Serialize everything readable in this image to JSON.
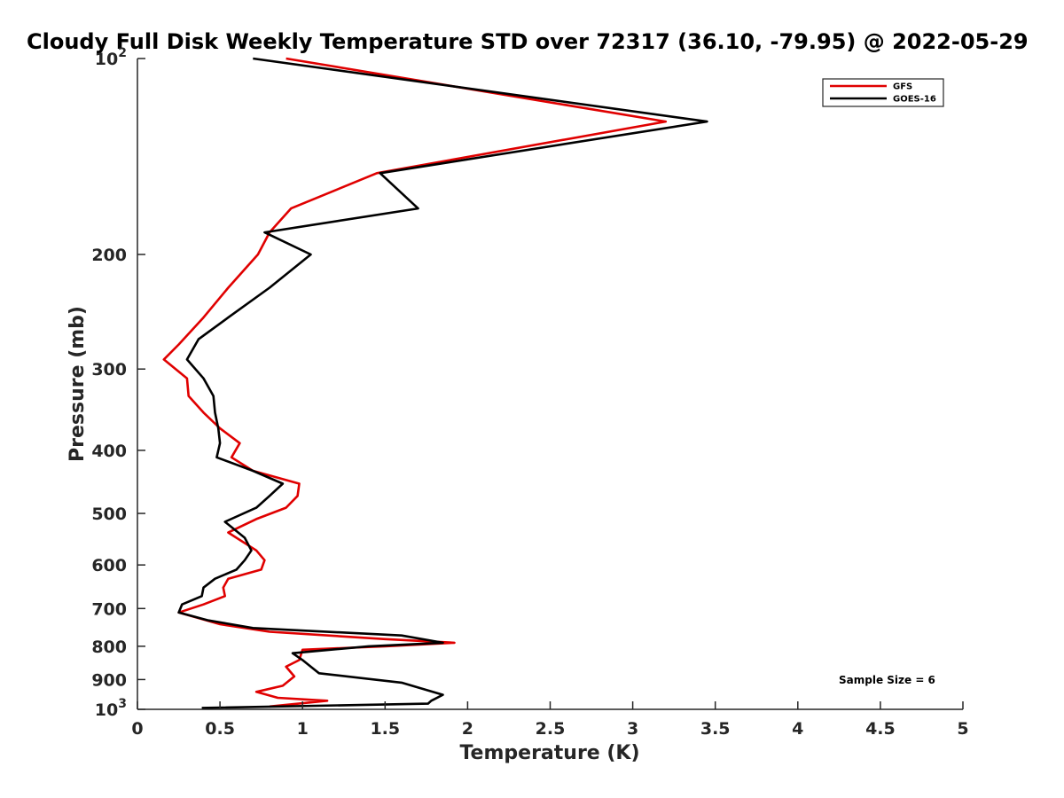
{
  "chart_data": {
    "type": "line",
    "title": "Cloudy Full Disk Weekly Temperature STD over 72317 (36.10, -79.95) @ 2022-05-29",
    "xlabel": "Temperature (K)",
    "ylabel": "Pressure (mb)",
    "xlim": [
      0,
      5
    ],
    "ylim": [
      100,
      1000
    ],
    "yscale": "log",
    "y_reversed": true,
    "grid": false,
    "legend_position": "top-right",
    "x_ticks": [
      {
        "value": 0,
        "label": "0"
      },
      {
        "value": 0.5,
        "label": "0.5"
      },
      {
        "value": 1,
        "label": "1"
      },
      {
        "value": 1.5,
        "label": "1.5"
      },
      {
        "value": 2,
        "label": "2"
      },
      {
        "value": 2.5,
        "label": "2.5"
      },
      {
        "value": 3,
        "label": "3"
      },
      {
        "value": 3.5,
        "label": "3.5"
      },
      {
        "value": 4,
        "label": "4"
      },
      {
        "value": 4.5,
        "label": "4.5"
      },
      {
        "value": 5,
        "label": "5"
      }
    ],
    "y_ticks": [
      {
        "value": 100,
        "base": "10",
        "exp": "2"
      },
      {
        "value": 200,
        "label": "200"
      },
      {
        "value": 300,
        "label": "300"
      },
      {
        "value": 400,
        "label": "400"
      },
      {
        "value": 500,
        "label": "500"
      },
      {
        "value": 600,
        "label": "600"
      },
      {
        "value": 700,
        "label": "700"
      },
      {
        "value": 800,
        "label": "800"
      },
      {
        "value": 900,
        "label": "900"
      },
      {
        "value": 1000,
        "base": "10",
        "exp": "3"
      }
    ],
    "annotation": "Sample Size = 6",
    "series": [
      {
        "name": "GFS",
        "color": "#e00000",
        "points": [
          [
            0.9,
            100
          ],
          [
            3.2,
            125
          ],
          [
            1.45,
            150
          ],
          [
            0.93,
            170
          ],
          [
            0.8,
            185
          ],
          [
            0.73,
            200
          ],
          [
            0.55,
            225
          ],
          [
            0.4,
            250
          ],
          [
            0.25,
            275
          ],
          [
            0.16,
            290
          ],
          [
            0.3,
            310
          ],
          [
            0.31,
            330
          ],
          [
            0.4,
            350
          ],
          [
            0.5,
            370
          ],
          [
            0.62,
            390
          ],
          [
            0.57,
            410
          ],
          [
            0.7,
            430
          ],
          [
            0.98,
            450
          ],
          [
            0.97,
            470
          ],
          [
            0.9,
            490
          ],
          [
            0.72,
            510
          ],
          [
            0.55,
            535
          ],
          [
            0.72,
            570
          ],
          [
            0.77,
            590
          ],
          [
            0.75,
            610
          ],
          [
            0.55,
            630
          ],
          [
            0.52,
            650
          ],
          [
            0.53,
            670
          ],
          [
            0.4,
            690
          ],
          [
            0.25,
            710
          ],
          [
            0.5,
            740
          ],
          [
            0.8,
            760
          ],
          [
            1.5,
            780
          ],
          [
            1.92,
            790
          ],
          [
            1.5,
            800
          ],
          [
            1.0,
            810
          ],
          [
            0.98,
            840
          ],
          [
            0.9,
            860
          ],
          [
            0.95,
            890
          ],
          [
            0.88,
            920
          ],
          [
            0.72,
            940
          ],
          [
            0.85,
            960
          ],
          [
            1.15,
            970
          ],
          [
            0.8,
            990
          ]
        ]
      },
      {
        "name": "GOES-16",
        "color": "#000000",
        "points": [
          [
            0.7,
            100
          ],
          [
            3.45,
            125
          ],
          [
            1.47,
            150
          ],
          [
            1.7,
            170
          ],
          [
            0.77,
            185
          ],
          [
            1.05,
            200
          ],
          [
            0.8,
            225
          ],
          [
            0.55,
            250
          ],
          [
            0.37,
            270
          ],
          [
            0.3,
            290
          ],
          [
            0.4,
            310
          ],
          [
            0.46,
            330
          ],
          [
            0.47,
            350
          ],
          [
            0.49,
            370
          ],
          [
            0.5,
            390
          ],
          [
            0.48,
            410
          ],
          [
            0.7,
            430
          ],
          [
            0.88,
            450
          ],
          [
            0.8,
            470
          ],
          [
            0.72,
            490
          ],
          [
            0.53,
            515
          ],
          [
            0.65,
            545
          ],
          [
            0.69,
            570
          ],
          [
            0.65,
            590
          ],
          [
            0.6,
            610
          ],
          [
            0.47,
            630
          ],
          [
            0.4,
            650
          ],
          [
            0.39,
            670
          ],
          [
            0.27,
            690
          ],
          [
            0.25,
            710
          ],
          [
            0.43,
            730
          ],
          [
            0.7,
            750
          ],
          [
            1.6,
            770
          ],
          [
            1.85,
            790
          ],
          [
            1.4,
            800
          ],
          [
            0.94,
            820
          ],
          [
            1.0,
            840
          ],
          [
            1.05,
            860
          ],
          [
            1.1,
            880
          ],
          [
            1.6,
            910
          ],
          [
            1.85,
            950
          ],
          [
            1.78,
            970
          ],
          [
            1.76,
            980
          ],
          [
            0.39,
            995
          ]
        ]
      }
    ]
  }
}
